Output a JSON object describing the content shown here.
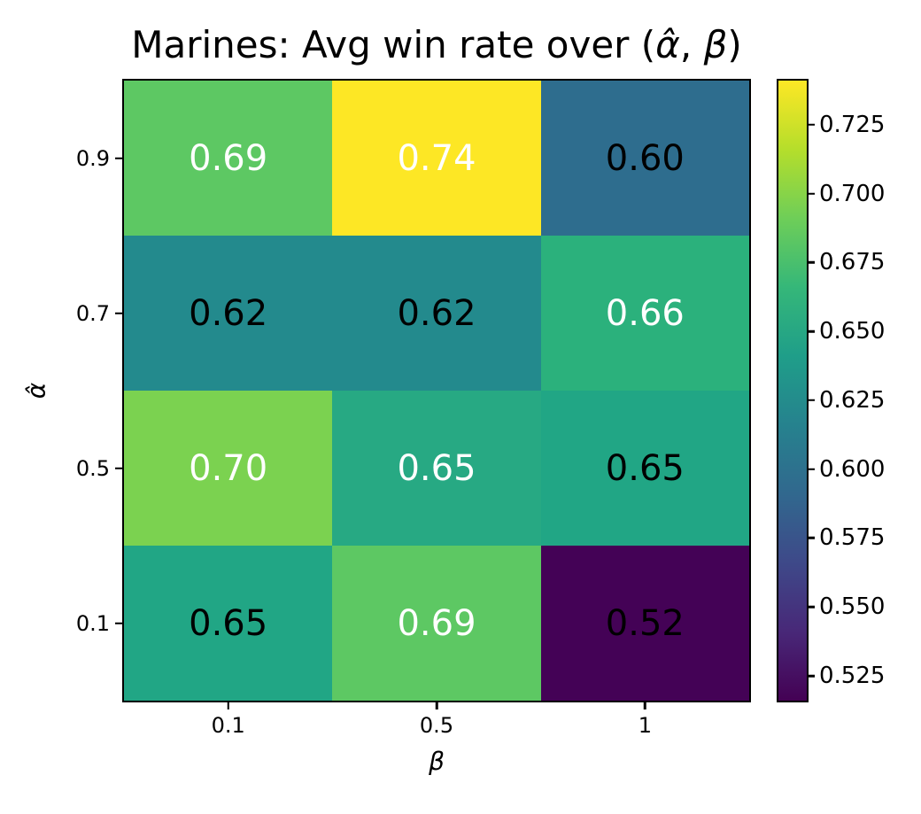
{
  "chart_data": {
    "type": "heatmap",
    "title": {
      "prefix": "Marines: Avg win rate over (",
      "alpha": "α̂",
      "separator": ", ",
      "beta": "β",
      "suffix": ")"
    },
    "xlabel": "β",
    "ylabel": "α̂",
    "x_tick_labels": [
      "0.1",
      "0.5",
      "1"
    ],
    "y_tick_labels": [
      "0.9",
      "0.7",
      "0.5",
      "0.1"
    ],
    "rows": [
      {
        "y": "0.9",
        "values": [
          0.69,
          0.74,
          0.6
        ],
        "labels": [
          "0.69",
          "0.74",
          "0.60"
        ],
        "colors": [
          "#5dc863",
          "#fde725",
          "#2e6d8e"
        ],
        "text_colors": [
          "#ffffff",
          "#ffffff",
          "#000000"
        ]
      },
      {
        "y": "0.7",
        "values": [
          0.62,
          0.62,
          0.66
        ],
        "labels": [
          "0.62",
          "0.62",
          "0.66"
        ],
        "colors": [
          "#238a8d",
          "#238a8d",
          "#2bb17c"
        ],
        "text_colors": [
          "#000000",
          "#000000",
          "#ffffff"
        ]
      },
      {
        "y": "0.5",
        "values": [
          0.7,
          0.65,
          0.65
        ],
        "labels": [
          "0.70",
          "0.65",
          "0.65"
        ],
        "colors": [
          "#7bd250",
          "#27a983",
          "#21a685"
        ],
        "text_colors": [
          "#ffffff",
          "#ffffff",
          "#000000"
        ]
      },
      {
        "y": "0.1",
        "values": [
          0.65,
          0.69,
          0.52
        ],
        "labels": [
          "0.65",
          "0.69",
          "0.52"
        ],
        "colors": [
          "#21a685",
          "#5dc863",
          "#440256"
        ],
        "text_colors": [
          "#000000",
          "#ffffff",
          "#000000"
        ]
      }
    ],
    "colormap": "viridis",
    "colorbar": {
      "tick_labels": [
        "0.725",
        "0.700",
        "0.675",
        "0.650",
        "0.625",
        "0.600",
        "0.575",
        "0.550",
        "0.525"
      ],
      "tick_values": [
        0.725,
        0.7,
        0.675,
        0.65,
        0.625,
        0.6,
        0.575,
        0.55,
        0.525
      ],
      "vmin": 0.516,
      "vmax": 0.741,
      "gradient_stops": [
        "#440154",
        "#482878",
        "#3e4989",
        "#31688e",
        "#26828e",
        "#1f9e89",
        "#35b779",
        "#6ece58",
        "#b5de2b",
        "#fde725"
      ]
    },
    "grid": false,
    "legend": "colorbar-right"
  }
}
